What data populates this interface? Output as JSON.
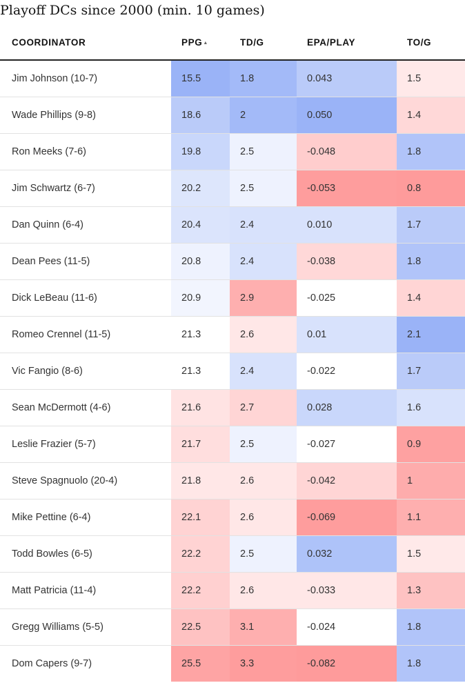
{
  "title": "Playoff DCs since 2000 (min. 10 games)",
  "colors": {
    "blue_strong": "#8fabf6",
    "red_strong": "#fe9090",
    "neutral": "#ffffff"
  },
  "headers": [
    {
      "label": "COORDINATOR"
    },
    {
      "label": "PPG",
      "sort_icon": "sort-ascending-icon",
      "sort_glyph": "▲"
    },
    {
      "label": "TD/G"
    },
    {
      "label": "EPA/PLAY"
    },
    {
      "label": "TO/G"
    }
  ],
  "chart_data": {
    "type": "table",
    "title": "Playoff DCs since 2000 (min. 10 games)",
    "columns": [
      "COORDINATOR",
      "PPG",
      "TD/G",
      "EPA/PLAY",
      "TO/G"
    ],
    "sorted_by": "PPG",
    "sort_order": "ascending",
    "rows": [
      [
        "Jim Johnson (10-7)",
        "15.5",
        "1.8",
        "0.043",
        "1.5"
      ],
      [
        "Wade Phillips (9-8)",
        "18.6",
        "2",
        "0.050",
        "1.4"
      ],
      [
        "Ron Meeks (7-6)",
        "19.8",
        "2.5",
        "-0.048",
        "1.8"
      ],
      [
        "Jim Schwartz (6-7)",
        "20.2",
        "2.5",
        "-0.053",
        "0.8"
      ],
      [
        "Dan Quinn (6-4)",
        "20.4",
        "2.4",
        "0.010",
        "1.7"
      ],
      [
        "Dean Pees (11-5)",
        "20.8",
        "2.4",
        "-0.038",
        "1.8"
      ],
      [
        "Dick LeBeau (11-6)",
        "20.9",
        "2.9",
        "-0.025",
        "1.4"
      ],
      [
        "Romeo Crennel (11-5)",
        "21.3",
        "2.6",
        "0.01",
        "2.1"
      ],
      [
        "Vic Fangio (8-6)",
        "21.3",
        "2.4",
        "-0.022",
        "1.7"
      ],
      [
        "Sean McDermott (4-6)",
        "21.6",
        "2.7",
        "0.028",
        "1.6"
      ],
      [
        "Leslie Frazier (5-7)",
        "21.7",
        "2.5",
        "-0.027",
        "0.9"
      ],
      [
        "Steve Spagnuolo (20-4)",
        "21.8",
        "2.6",
        "-0.042",
        "1"
      ],
      [
        "Mike Pettine (6-4)",
        "22.1",
        "2.6",
        "-0.069",
        "1.1"
      ],
      [
        "Todd Bowles (6-5)",
        "22.2",
        "2.5",
        "0.032",
        "1.5"
      ],
      [
        "Matt Patricia (11-4)",
        "22.2",
        "2.6",
        "-0.033",
        "1.3"
      ],
      [
        "Gregg Williams (5-5)",
        "22.5",
        "3.1",
        "-0.024",
        "1.8"
      ],
      [
        "Dom Capers (9-7)",
        "25.5",
        "3.3",
        "-0.082",
        "1.8"
      ]
    ],
    "cell_shading": [
      [
        null,
        0.9,
        0.82,
        0.62,
        -0.2
      ],
      [
        null,
        0.62,
        0.82,
        0.9,
        -0.35
      ],
      [
        null,
        0.48,
        0.15,
        -0.45,
        0.7
      ],
      [
        null,
        0.3,
        0.15,
        -0.88,
        -0.9
      ],
      [
        null,
        0.32,
        0.35,
        0.35,
        0.62
      ],
      [
        null,
        0.15,
        0.35,
        -0.35,
        0.7
      ],
      [
        null,
        0.12,
        -0.72,
        0.0,
        -0.38
      ],
      [
        null,
        0.0,
        -0.22,
        0.35,
        0.9
      ],
      [
        null,
        0.0,
        0.35,
        0.0,
        0.62
      ],
      [
        null,
        -0.25,
        -0.38,
        0.48,
        0.35
      ],
      [
        null,
        -0.3,
        0.15,
        0.0,
        -0.85
      ],
      [
        null,
        -0.22,
        -0.22,
        -0.38,
        -0.75
      ],
      [
        null,
        -0.4,
        -0.22,
        -0.88,
        -0.72
      ],
      [
        null,
        -0.4,
        0.15,
        0.72,
        -0.2
      ],
      [
        null,
        -0.42,
        -0.22,
        -0.22,
        -0.55
      ],
      [
        null,
        -0.55,
        -0.72,
        0.0,
        0.7
      ],
      [
        null,
        -0.82,
        -0.88,
        -0.9,
        0.7
      ]
    ]
  }
}
